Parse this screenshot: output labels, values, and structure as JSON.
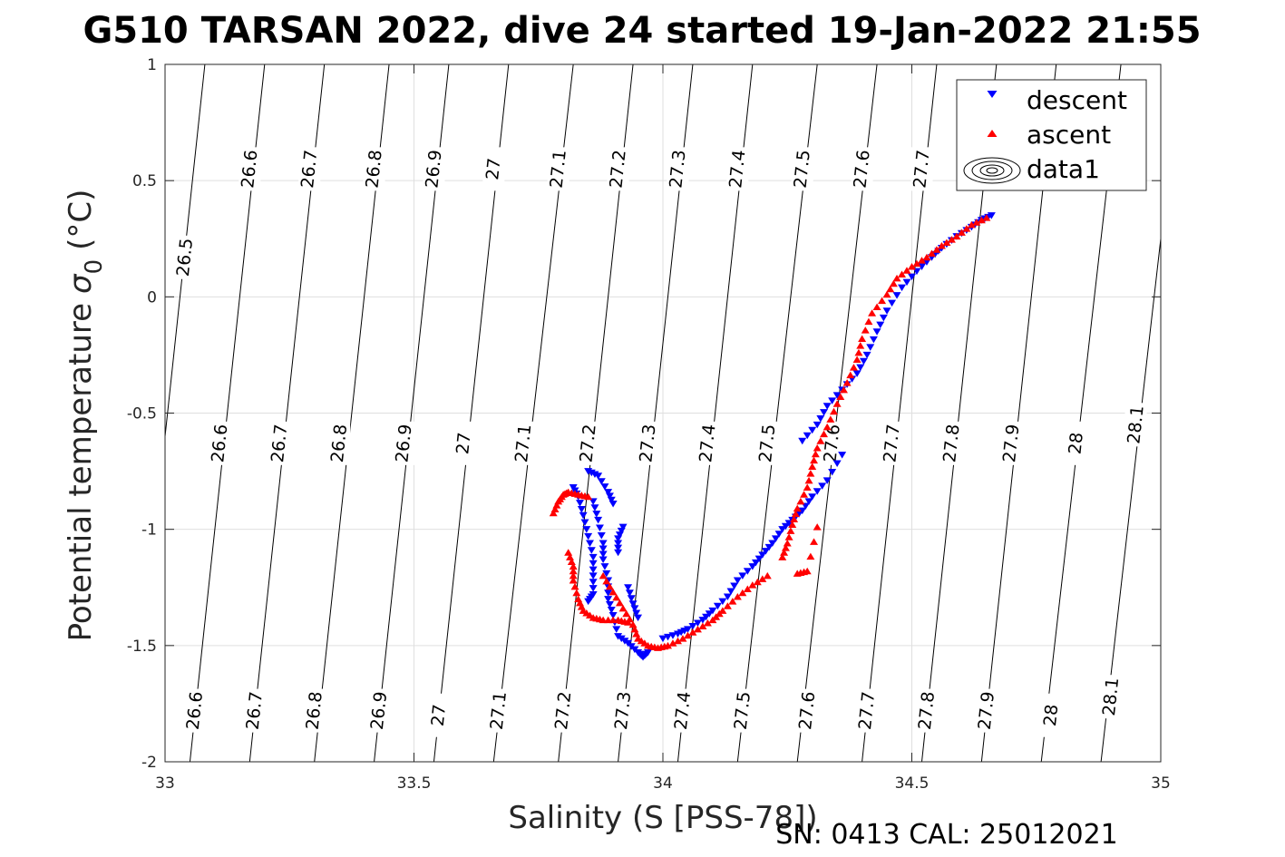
{
  "chart_data": {
    "type": "scatter",
    "title": "G510 TARSAN 2022, dive 24 started 19-Jan-2022 21:55",
    "xlabel": "Salinity (S [PSS-78])",
    "ylabel": "Potential temperature",
    "ylabel_symbol": "σ",
    "ylabel_sub": "0",
    "ylabel_unit": "(°C)",
    "footer": "SN: 0413  CAL: 25012021",
    "xlim": [
      33,
      35
    ],
    "ylim": [
      -2,
      1
    ],
    "xticks": [
      33,
      33.5,
      34,
      34.5,
      35
    ],
    "xtick_labels": [
      "33",
      "33.5",
      "34",
      "34.5",
      "35"
    ],
    "yticks": [
      1,
      0.5,
      0,
      -0.5,
      -1,
      -1.5,
      -2
    ],
    "ytick_labels": [
      "1",
      "0.5",
      "0",
      "-0.5",
      "-1",
      "-1.5",
      "-2"
    ],
    "grid": true,
    "legend_position": "top-right",
    "legend": [
      "descent",
      "ascent",
      "data1"
    ],
    "contours": {
      "levels": [
        26.5,
        26.6,
        26.7,
        26.8,
        26.9,
        27,
        27.1,
        27.2,
        27.3,
        27.4,
        27.5,
        27.6,
        27.7,
        27.8,
        27.9,
        28,
        28.1
      ],
      "salinity_at_top": [
        33.08,
        33.2,
        33.32,
        33.45,
        33.57,
        33.69,
        33.82,
        33.94,
        34.06,
        34.18,
        34.31,
        34.43,
        34.55,
        34.67,
        34.79,
        34.92,
        35.04
      ],
      "salinity_at_bottom": [
        32.93,
        33.05,
        33.17,
        33.3,
        33.42,
        33.54,
        33.66,
        33.79,
        33.91,
        34.03,
        34.15,
        34.27,
        34.4,
        34.52,
        34.64,
        34.76,
        34.88
      ],
      "labels": [
        {
          "text": "26.5",
          "s": 33.04,
          "t": 0.17
        },
        {
          "text": "26.6",
          "s": 33.17,
          "t": 0.55
        },
        {
          "text": "26.7",
          "s": 33.29,
          "t": 0.55
        },
        {
          "text": "26.8",
          "s": 33.42,
          "t": 0.55
        },
        {
          "text": "26.9",
          "s": 33.54,
          "t": 0.55
        },
        {
          "text": "27",
          "s": 33.66,
          "t": 0.55
        },
        {
          "text": "27.1",
          "s": 33.79,
          "t": 0.55
        },
        {
          "text": "27.2",
          "s": 33.91,
          "t": 0.55
        },
        {
          "text": "27.3",
          "s": 34.03,
          "t": 0.55
        },
        {
          "text": "27.4",
          "s": 34.15,
          "t": 0.55
        },
        {
          "text": "27.5",
          "s": 34.28,
          "t": 0.55
        },
        {
          "text": "27.6",
          "s": 34.4,
          "t": 0.55
        },
        {
          "text": "27.7",
          "s": 34.52,
          "t": 0.55
        },
        {
          "text": "26.6",
          "s": 33.11,
          "t": -0.63
        },
        {
          "text": "26.7",
          "s": 33.23,
          "t": -0.63
        },
        {
          "text": "26.8",
          "s": 33.35,
          "t": -0.63
        },
        {
          "text": "26.9",
          "s": 33.48,
          "t": -0.63
        },
        {
          "text": "27",
          "s": 33.6,
          "t": -0.63
        },
        {
          "text": "27.1",
          "s": 33.72,
          "t": -0.63
        },
        {
          "text": "27.2",
          "s": 33.85,
          "t": -0.63
        },
        {
          "text": "27.3",
          "s": 33.97,
          "t": -0.63
        },
        {
          "text": "27.4",
          "s": 34.09,
          "t": -0.63
        },
        {
          "text": "27.5",
          "s": 34.21,
          "t": -0.63
        },
        {
          "text": "27.6",
          "s": 34.34,
          "t": -0.63
        },
        {
          "text": "27.7",
          "s": 34.46,
          "t": -0.63
        },
        {
          "text": "27.8",
          "s": 34.58,
          "t": -0.63
        },
        {
          "text": "27.9",
          "s": 34.7,
          "t": -0.63
        },
        {
          "text": "28",
          "s": 34.83,
          "t": -0.63
        },
        {
          "text": "28.1",
          "s": 34.95,
          "t": -0.55
        },
        {
          "text": "26.6",
          "s": 33.06,
          "t": -1.78
        },
        {
          "text": "26.7",
          "s": 33.18,
          "t": -1.78
        },
        {
          "text": "26.8",
          "s": 33.3,
          "t": -1.78
        },
        {
          "text": "26.9",
          "s": 33.43,
          "t": -1.78
        },
        {
          "text": "27",
          "s": 33.55,
          "t": -1.8
        },
        {
          "text": "27.1",
          "s": 33.67,
          "t": -1.78
        },
        {
          "text": "27.2",
          "s": 33.8,
          "t": -1.78
        },
        {
          "text": "27.3",
          "s": 33.92,
          "t": -1.78
        },
        {
          "text": "27.4",
          "s": 34.04,
          "t": -1.78
        },
        {
          "text": "27.5",
          "s": 34.16,
          "t": -1.78
        },
        {
          "text": "27.6",
          "s": 34.29,
          "t": -1.78
        },
        {
          "text": "27.7",
          "s": 34.41,
          "t": -1.78
        },
        {
          "text": "27.8",
          "s": 34.53,
          "t": -1.78
        },
        {
          "text": "27.9",
          "s": 34.65,
          "t": -1.78
        },
        {
          "text": "28",
          "s": 34.78,
          "t": -1.8
        },
        {
          "text": "28.1",
          "s": 34.9,
          "t": -1.72
        }
      ]
    },
    "series": [
      {
        "name": "descent",
        "color": "#0000ff",
        "marker": "triangle-down",
        "segments": [
          [
            [
              33.82,
              -0.82
            ],
            [
              33.83,
              -0.86
            ],
            [
              33.84,
              -0.94
            ],
            [
              33.85,
              -1.03
            ],
            [
              33.86,
              -1.12
            ],
            [
              33.86,
              -1.2
            ],
            [
              33.86,
              -1.28
            ],
            [
              33.85,
              -1.31
            ]
          ],
          [
            [
              33.85,
              -0.75
            ],
            [
              33.87,
              -0.77
            ],
            [
              33.89,
              -0.84
            ],
            [
              33.9,
              -0.89
            ]
          ],
          [
            [
              33.86,
              -0.88
            ],
            [
              33.87,
              -0.96
            ],
            [
              33.88,
              -1.06
            ],
            [
              33.88,
              -1.13
            ],
            [
              33.89,
              -1.22
            ],
            [
              33.89,
              -1.3
            ],
            [
              33.9,
              -1.37
            ],
            [
              33.91,
              -1.46
            ],
            [
              33.93,
              -1.49
            ],
            [
              33.95,
              -1.53
            ],
            [
              33.96,
              -1.55
            ],
            [
              33.97,
              -1.53
            ]
          ],
          [
            [
              33.92,
              -0.99
            ],
            [
              33.91,
              -1.04
            ],
            [
              33.91,
              -1.1
            ]
          ],
          [
            [
              33.93,
              -1.25
            ],
            [
              33.94,
              -1.32
            ],
            [
              33.95,
              -1.38
            ]
          ],
          [
            [
              34.0,
              -1.47
            ],
            [
              34.03,
              -1.45
            ],
            [
              34.05,
              -1.43
            ],
            [
              34.08,
              -1.39
            ],
            [
              34.1,
              -1.35
            ],
            [
              34.13,
              -1.29
            ],
            [
              34.15,
              -1.22
            ],
            [
              34.18,
              -1.16
            ],
            [
              34.2,
              -1.11
            ],
            [
              34.22,
              -1.06
            ],
            [
              34.24,
              -1.0
            ],
            [
              34.26,
              -0.96
            ],
            [
              34.28,
              -0.92
            ],
            [
              34.3,
              -0.86
            ],
            [
              34.33,
              -0.79
            ],
            [
              34.36,
              -0.68
            ]
          ],
          [
            [
              34.28,
              -0.62
            ],
            [
              34.31,
              -0.55
            ],
            [
              34.33,
              -0.47
            ],
            [
              34.36,
              -0.4
            ],
            [
              34.39,
              -0.33
            ],
            [
              34.41,
              -0.25
            ],
            [
              34.43,
              -0.15
            ],
            [
              34.45,
              -0.06
            ],
            [
              34.48,
              0.04
            ],
            [
              34.51,
              0.11
            ],
            [
              34.54,
              0.17
            ],
            [
              34.56,
              0.21
            ],
            [
              34.59,
              0.26
            ],
            [
              34.62,
              0.3
            ],
            [
              34.64,
              0.33
            ],
            [
              34.66,
              0.35
            ]
          ]
        ]
      },
      {
        "name": "ascent",
        "color": "#ff0000",
        "marker": "triangle-up",
        "segments": [
          [
            [
              33.78,
              -0.93
            ],
            [
              33.79,
              -0.88
            ],
            [
              33.8,
              -0.85
            ],
            [
              33.81,
              -0.84
            ],
            [
              33.83,
              -0.85
            ],
            [
              33.85,
              -0.86
            ]
          ],
          [
            [
              33.81,
              -1.1
            ],
            [
              33.82,
              -1.16
            ],
            [
              33.82,
              -1.22
            ],
            [
              33.83,
              -1.3
            ],
            [
              33.84,
              -1.35
            ],
            [
              33.86,
              -1.38
            ],
            [
              33.88,
              -1.39
            ],
            [
              33.91,
              -1.39
            ],
            [
              33.93,
              -1.4
            ]
          ],
          [
            [
              33.88,
              -1.2
            ],
            [
              33.9,
              -1.27
            ],
            [
              33.92,
              -1.34
            ],
            [
              33.94,
              -1.41
            ],
            [
              33.95,
              -1.47
            ],
            [
              33.97,
              -1.5
            ],
            [
              33.99,
              -1.51
            ],
            [
              34.01,
              -1.5
            ],
            [
              34.04,
              -1.47
            ],
            [
              34.07,
              -1.43
            ],
            [
              34.1,
              -1.39
            ],
            [
              34.12,
              -1.35
            ],
            [
              34.15,
              -1.29
            ],
            [
              34.18,
              -1.24
            ],
            [
              34.21,
              -1.2
            ]
          ],
          [
            [
              34.24,
              -1.12
            ],
            [
              34.25,
              -1.06
            ],
            [
              34.26,
              -0.98
            ],
            [
              34.27,
              -0.91
            ],
            [
              34.29,
              -0.82
            ],
            [
              34.3,
              -0.73
            ],
            [
              34.31,
              -0.65
            ],
            [
              34.33,
              -0.56
            ],
            [
              34.35,
              -0.46
            ],
            [
              34.37,
              -0.37
            ],
            [
              34.39,
              -0.27
            ],
            [
              34.4,
              -0.18
            ],
            [
              34.42,
              -0.07
            ],
            [
              34.45,
              0.01
            ],
            [
              34.47,
              0.08
            ],
            [
              34.5,
              0.13
            ],
            [
              34.53,
              0.17
            ],
            [
              34.56,
              0.22
            ],
            [
              34.59,
              0.26
            ],
            [
              34.62,
              0.31
            ],
            [
              34.65,
              0.34
            ]
          ],
          [
            [
              34.27,
              -1.19
            ],
            [
              34.29,
              -1.18
            ],
            [
              34.31,
              -0.99
            ]
          ]
        ]
      }
    ]
  }
}
